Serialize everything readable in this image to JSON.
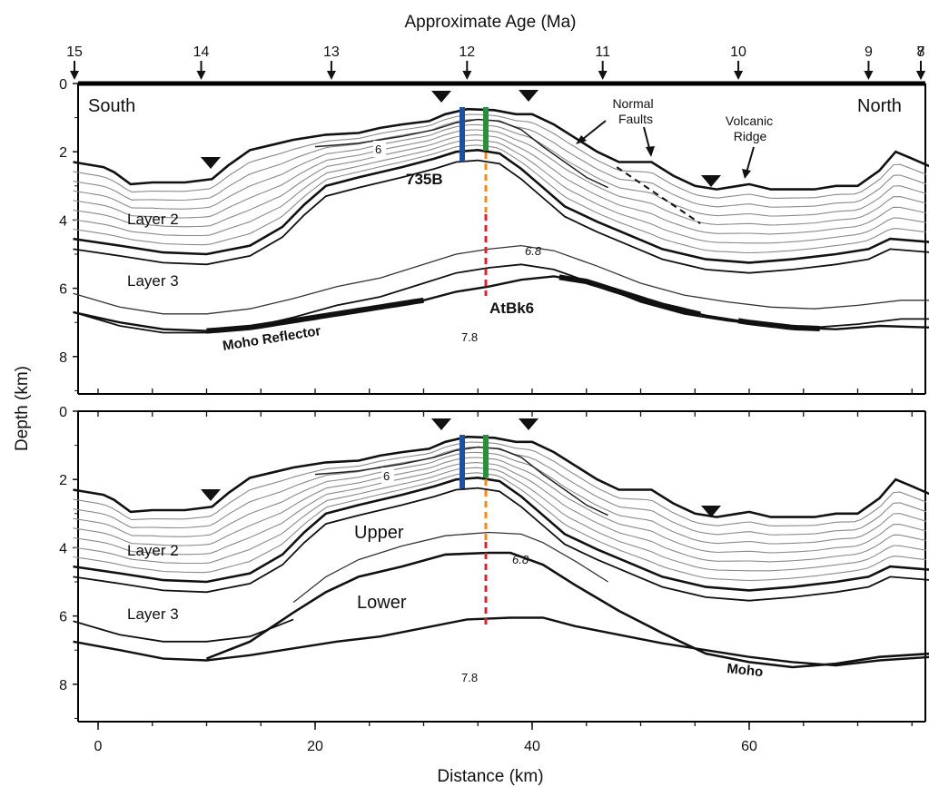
{
  "top_axis": {
    "title": "Approximate Age (Ma)",
    "ticks": [
      {
        "label": "15",
        "distance": -2.5
      },
      {
        "label": "14",
        "distance": 9.5
      },
      {
        "label": "13",
        "distance": 21.5
      },
      {
        "label": "12",
        "distance": 34.0
      },
      {
        "label": "11",
        "distance": 46.5
      },
      {
        "label": "10",
        "distance": 59.0
      },
      {
        "label": "9",
        "distance": 71.0
      },
      {
        "label": "8",
        "distance": 83.5
      },
      {
        "label": "7",
        "distance": 97.0
      }
    ]
  },
  "bottom_axis": {
    "title": "Distance (km)",
    "ticks": [
      "0",
      "20",
      "40",
      "60"
    ]
  },
  "y_axis": {
    "title": "Depth (km)",
    "ticks": [
      "0",
      "2",
      "4",
      "6",
      "8"
    ]
  },
  "upper_panel": {
    "south": "South",
    "north": "North",
    "normal_faults": [
      "Normal",
      "Faults"
    ],
    "volcanic_ridge": [
      "Volcanic",
      "Ridge"
    ],
    "layer2": "Layer 2",
    "layer3": "Layer 3",
    "vel_6": "6",
    "vel_68": "6.8",
    "vel_78": "7.8",
    "site_735b": "735B",
    "site_atbk6": "AtBk6",
    "moho_reflector": "Moho Reflector"
  },
  "lower_panel": {
    "layer2": "Layer 2",
    "layer3": "Layer 3",
    "upper": "Upper",
    "lower": "Lower",
    "vel_6": "6",
    "vel_68": "6.8",
    "vel_78": "7.8",
    "moho": "Moho"
  },
  "colors": {
    "borehole_735b": "#1f4fa0",
    "borehole_atbk6": "#2a8f3a",
    "projection_upper": "#f08a1c",
    "projection_lower": "#d9232e"
  }
}
